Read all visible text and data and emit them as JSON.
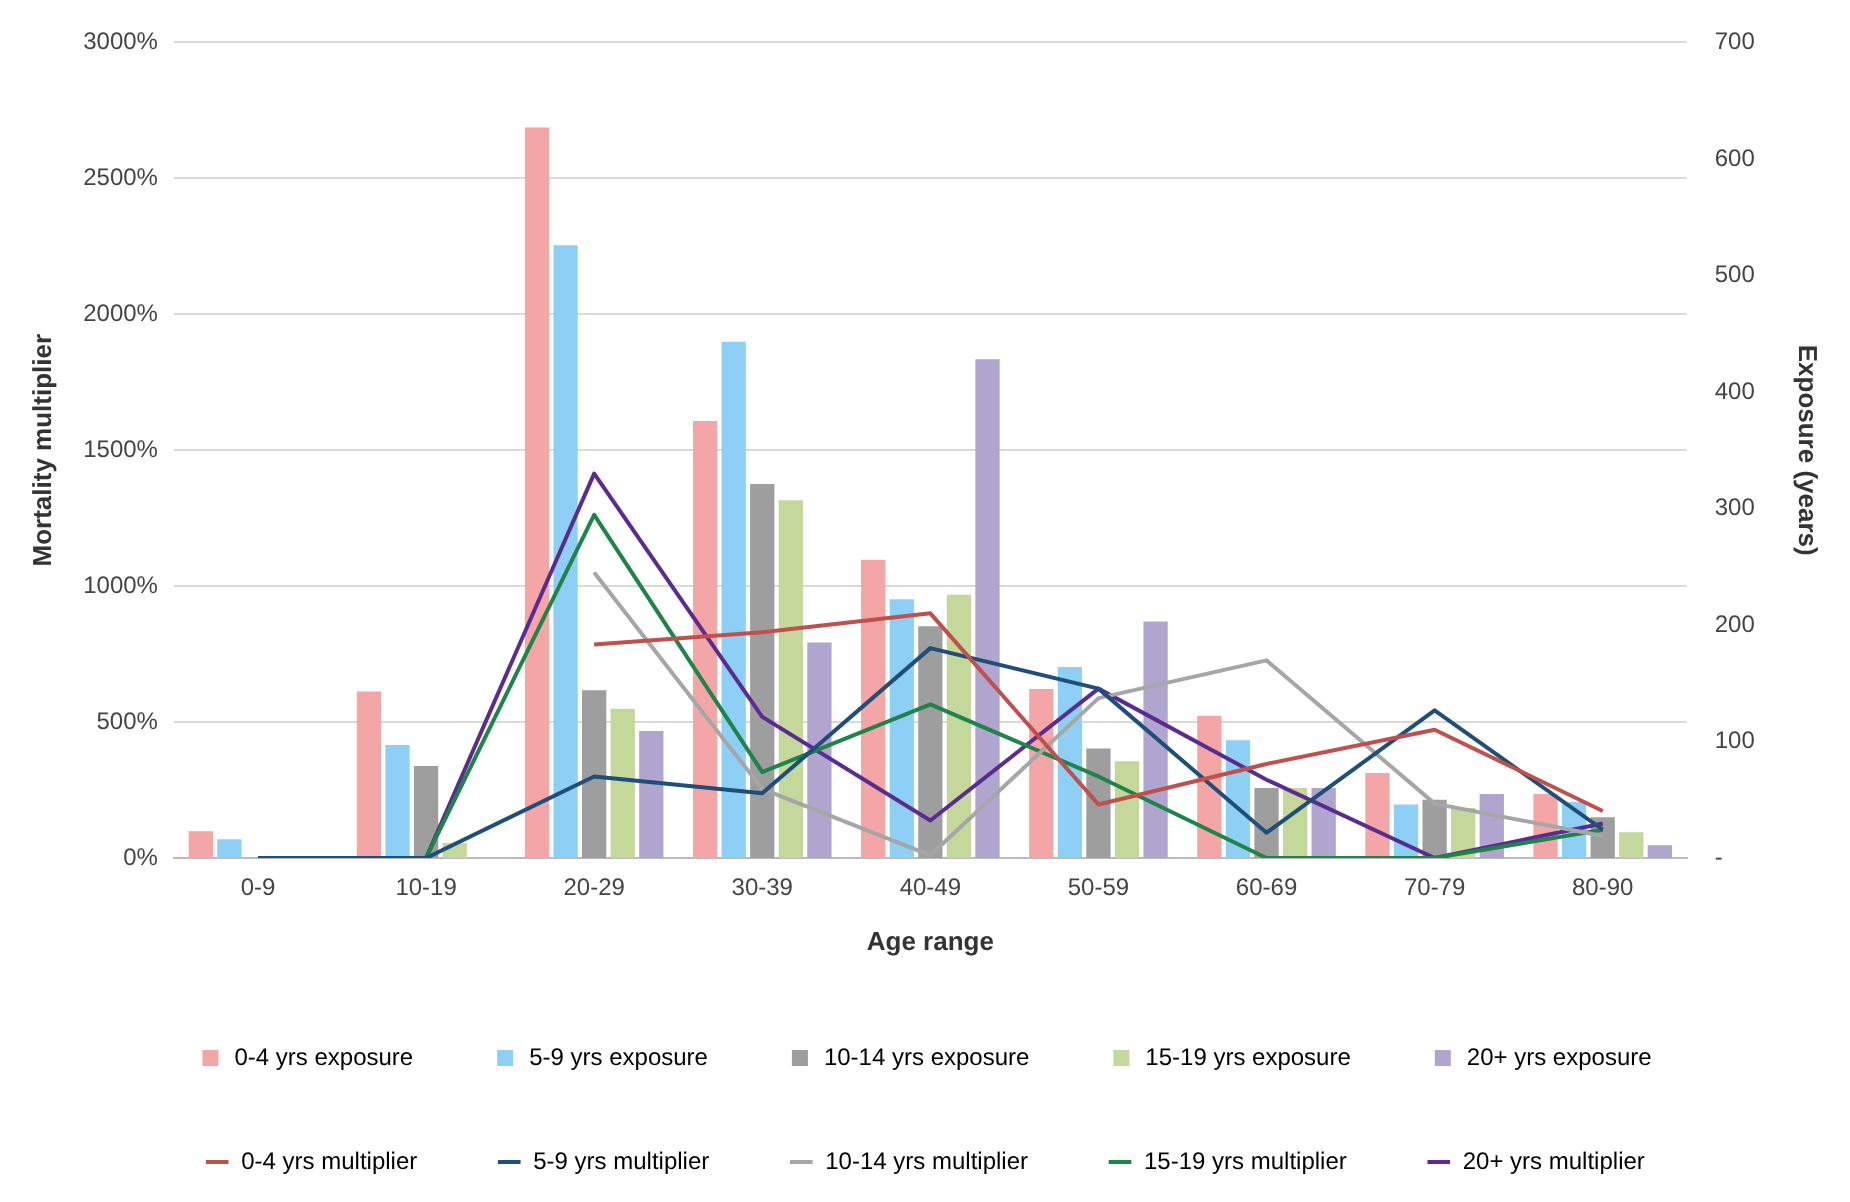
{
  "chart_data": {
    "type": "bar",
    "xlabel": "Age range",
    "ylabel": "Mortality multiplier",
    "y2label": "Exposure (years)",
    "categories": [
      "0-9",
      "10-19",
      "20-29",
      "30-39",
      "40-49",
      "50-59",
      "60-69",
      "70-79",
      "80-90"
    ],
    "series": [
      {
        "name": "0-4 yrs exposure",
        "axis": "y2",
        "color": "#f4a6a6",
        "values": [
          23,
          143,
          627,
          375,
          256,
          145,
          122,
          73,
          55
        ]
      },
      {
        "name": "5-9 yrs exposure",
        "axis": "y2",
        "color": "#8ecff5",
        "values": [
          16,
          97,
          526,
          443,
          222,
          164,
          101,
          46,
          48
        ]
      },
      {
        "name": "10-14 yrs exposure",
        "axis": "y2",
        "color": "#9e9e9e",
        "values": [
          0,
          79,
          144,
          321,
          199,
          94,
          60,
          50,
          35
        ]
      },
      {
        "name": "15-19 yrs exposure",
        "axis": "y2",
        "color": "#c3d89a",
        "values": [
          0,
          13,
          128,
          307,
          226,
          83,
          60,
          43,
          22
        ]
      },
      {
        "name": "20+ yrs exposure",
        "axis": "y2",
        "color": "#b0a5cf",
        "values": [
          0,
          0,
          109,
          185,
          428,
          203,
          60,
          55,
          11
        ]
      },
      {
        "name": "0-4 yrs multiplier",
        "type": "line",
        "axis": "y",
        "color": "#c0504d",
        "values": [
          null,
          null,
          785,
          830,
          900,
          197,
          346,
          472,
          173
        ]
      },
      {
        "name": "5-9 yrs multiplier",
        "type": "line",
        "axis": "y",
        "color": "#1f4e79",
        "values": [
          0,
          0,
          300,
          238,
          772,
          623,
          93,
          543,
          104
        ]
      },
      {
        "name": "10-14 yrs multiplier",
        "type": "line",
        "axis": "y",
        "color": "#a6a6a6",
        "values": [
          null,
          null,
          1050,
          254,
          10,
          588,
          727,
          200,
          81
        ]
      },
      {
        "name": "15-19 yrs multiplier",
        "type": "line",
        "axis": "y",
        "color": "#1e8449",
        "values": [
          0,
          0,
          1262,
          316,
          565,
          300,
          0,
          0,
          104
        ]
      },
      {
        "name": "20+ yrs multiplier",
        "type": "line",
        "axis": "y",
        "color": "#5b2c8f",
        "values": [
          0,
          0,
          1414,
          519,
          138,
          623,
          288,
          0,
          127
        ]
      }
    ],
    "ylim": [
      0,
      3000
    ],
    "yticks": [
      {
        "value": 0,
        "label": "0%"
      },
      {
        "value": 500,
        "label": "500%"
      },
      {
        "value": 1000,
        "label": "1000%"
      },
      {
        "value": 1500,
        "label": "1500%"
      },
      {
        "value": 2000,
        "label": "2000%"
      },
      {
        "value": 2500,
        "label": "2500%"
      },
      {
        "value": 3000,
        "label": "3000%"
      }
    ],
    "y2lim": [
      0,
      700
    ],
    "y2ticks": [
      {
        "value": 0,
        "label": "-"
      },
      100,
      200,
      300,
      400,
      500,
      600,
      700
    ],
    "grid": "y",
    "legend": "bottom",
    "marker": "none",
    "line_style": "solid"
  }
}
